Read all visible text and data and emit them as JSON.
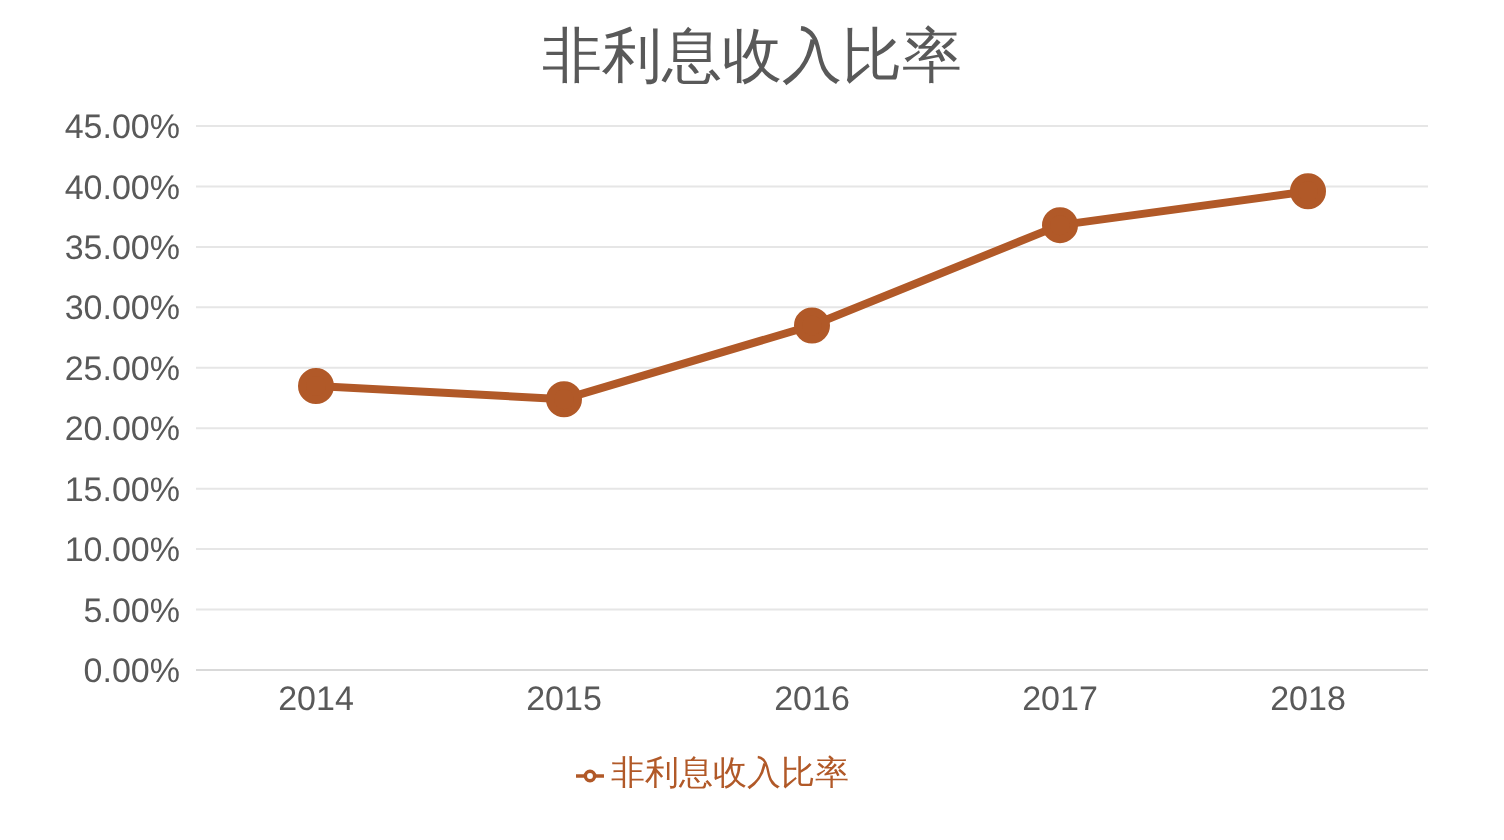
{
  "chart_data": {
    "type": "line",
    "title": "非利息收入比率",
    "categories": [
      "2014",
      "2015",
      "2016",
      "2017",
      "2018"
    ],
    "series": [
      {
        "name": "非利息收入比率",
        "color": "#b15928",
        "values": [
          23.5,
          22.4,
          28.5,
          36.8,
          39.6
        ]
      }
    ],
    "ylim": [
      0,
      45
    ],
    "yticks": [
      {
        "value": 0,
        "label": "0.00%"
      },
      {
        "value": 5,
        "label": "5.00%"
      },
      {
        "value": 10,
        "label": "10.00%"
      },
      {
        "value": 15,
        "label": "15.00%"
      },
      {
        "value": 20,
        "label": "20.00%"
      },
      {
        "value": 25,
        "label": "25.00%"
      },
      {
        "value": 30,
        "label": "30.00%"
      },
      {
        "value": 35,
        "label": "35.00%"
      },
      {
        "value": 40,
        "label": "40.00%"
      },
      {
        "value": 45,
        "label": "45.00%"
      }
    ],
    "grid": "y",
    "legend": "bottom",
    "marker": "circle",
    "line_style": "solid"
  }
}
